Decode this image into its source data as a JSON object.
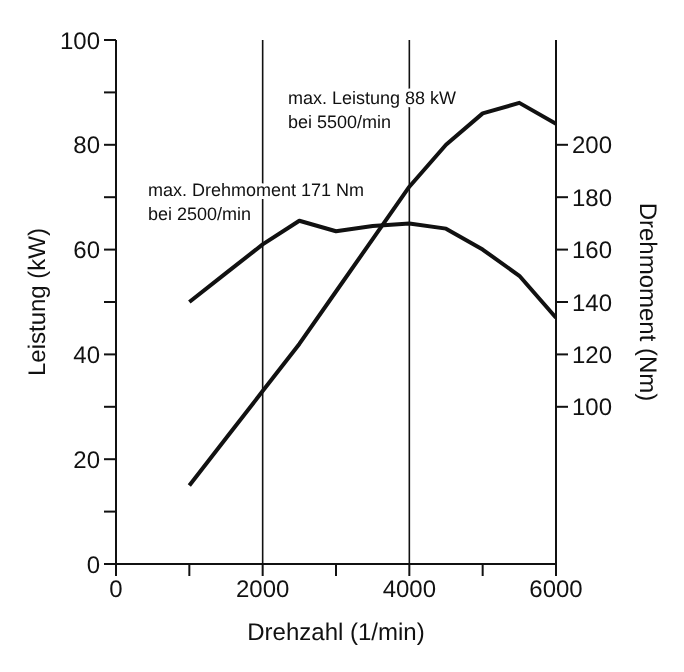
{
  "chart_data": {
    "type": "line",
    "xlabel": "Drehzahl (1/min)",
    "ylabel": "Leistung (kW)",
    "y2label": "Drehmoment (Nm)",
    "x": [
      1000,
      1500,
      2000,
      2500,
      3000,
      3500,
      4000,
      4500,
      5000,
      5500,
      6000
    ],
    "series": [
      {
        "color": "#111111",
        "values": [
          15,
          24,
          33,
          42,
          52,
          62,
          72,
          80,
          86,
          88,
          84
        ]
      },
      {
        "color": "#111111",
        "axis": "y2",
        "values": [
          140,
          151,
          162,
          171,
          167,
          169,
          170,
          168,
          160,
          150,
          134
        ]
      }
    ],
    "xlim": [
      0,
      6000
    ],
    "xticks": [
      0,
      {
        "value": 1000,
        "label": null
      },
      2000,
      {
        "value": 3000,
        "label": null
      },
      4000,
      {
        "value": 5000,
        "label": null
      },
      6000
    ],
    "ylim": [
      0,
      100
    ],
    "yticks": [
      0,
      {
        "value": 10,
        "label": null
      },
      20,
      {
        "value": 30,
        "label": null
      },
      40,
      {
        "value": 50,
        "label": null
      },
      60,
      {
        "value": 70,
        "label": null
      },
      80,
      {
        "value": 90,
        "label": null
      },
      100
    ],
    "y2lim": [
      40,
      240
    ],
    "y2ticks": [
      100,
      120,
      140,
      160,
      180,
      200
    ],
    "annotations": [
      "max. Leistung 88 kW\nbei 5500/min",
      "max. Drehmoment 171 Nm\nbei 2500/min"
    ],
    "grid": true,
    "marker": "none",
    "line_style": "solid"
  }
}
